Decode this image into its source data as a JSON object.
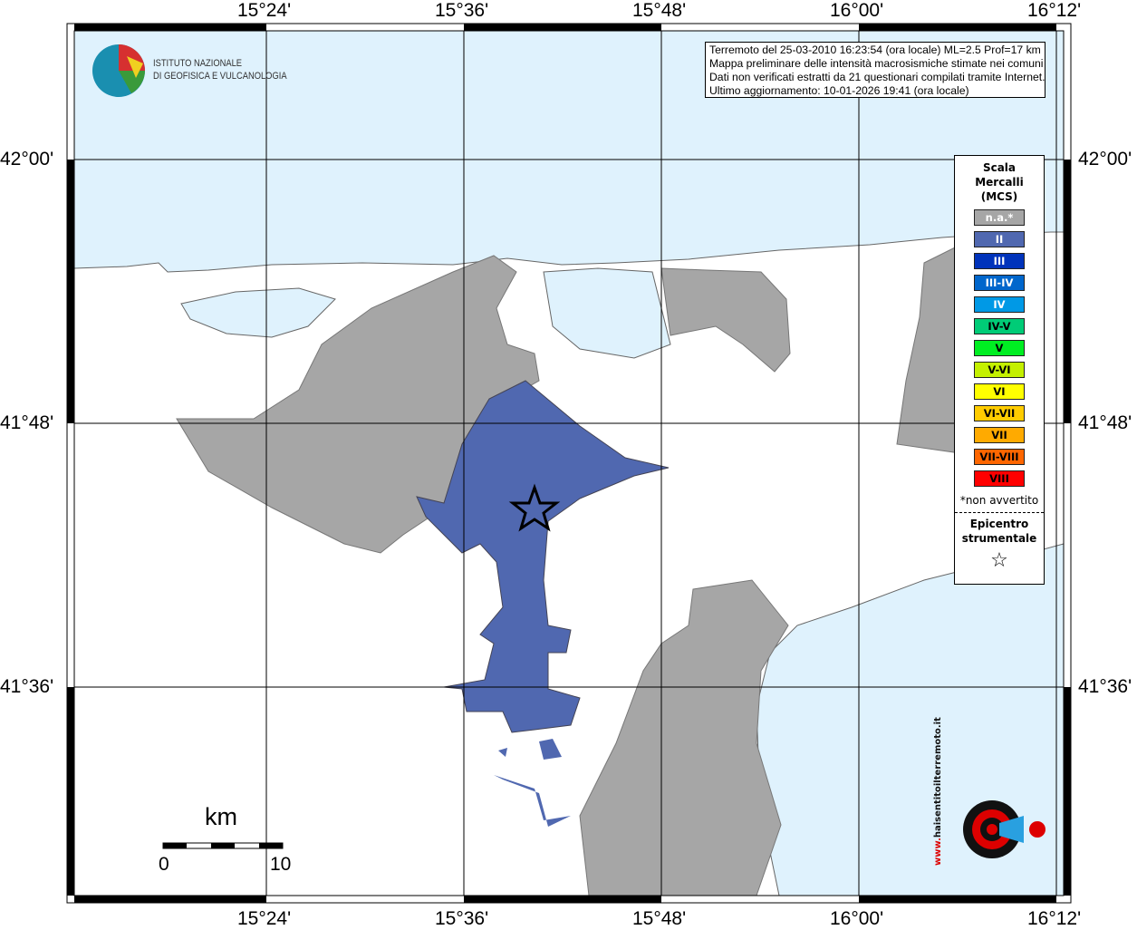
{
  "colors": {
    "sea": "#dff2fd",
    "land": "#ffffff",
    "not_felt": "#a6a6a6",
    "intensity_II": "#5068b0"
  },
  "axes": {
    "longitude_ticks": [
      "15°24'",
      "15°36'",
      "15°48'",
      "16°00'",
      "16°12'"
    ],
    "latitude_ticks": [
      "42°00'",
      "41°48'",
      "41°36'"
    ]
  },
  "logo": {
    "line1": "ISTITUTO NAZIONALE",
    "line2": "DI GEOFISICA E VULCANOLOGIA"
  },
  "info": {
    "line1": "Terremoto del 25-03-2010 16:23:54 (ora locale) ML=2.5 Prof=17 km",
    "line2": "Mappa preliminare delle intensità macrosismiche stimate nei comuni",
    "line3": "Dati non verificati estratti da 21 questionari compilati tramite Internet.",
    "line4": "Ultimo aggiornamento: 10-01-2026 19:41 (ora locale)"
  },
  "legend": {
    "title1": "Scala",
    "title2": "Mercalli",
    "title3": "(MCS)",
    "items": [
      {
        "label": "n.a.*",
        "color": "#a6a6a6",
        "text": "#fff"
      },
      {
        "label": "II",
        "color": "#5068b0",
        "text": "#fff"
      },
      {
        "label": "III",
        "color": "#0033bb",
        "text": "#fff"
      },
      {
        "label": "III-IV",
        "color": "#0066cc",
        "text": "#fff"
      },
      {
        "label": "IV",
        "color": "#0099e6",
        "text": "#fff"
      },
      {
        "label": "IV-V",
        "color": "#00cc77",
        "text": "#000"
      },
      {
        "label": "V",
        "color": "#00ee22",
        "text": "#000"
      },
      {
        "label": "V-VI",
        "color": "#c4f000",
        "text": "#000"
      },
      {
        "label": "VI",
        "color": "#ffff00",
        "text": "#000"
      },
      {
        "label": "VI-VII",
        "color": "#ffcc00",
        "text": "#000"
      },
      {
        "label": "VII",
        "color": "#ffaa00",
        "text": "#000"
      },
      {
        "label": "VII-VIII",
        "color": "#ff6600",
        "text": "#000"
      },
      {
        "label": "VIII",
        "color": "#ff0000",
        "text": "#000"
      }
    ],
    "note": "*non avvertito",
    "epicenter1": "Epicentro",
    "epicenter2": "strumentale"
  },
  "scale": {
    "unit": "km",
    "start": "0",
    "end": "10"
  },
  "badge": {
    "text": "haisentitoilterremoto.it",
    "prefix": "www."
  }
}
